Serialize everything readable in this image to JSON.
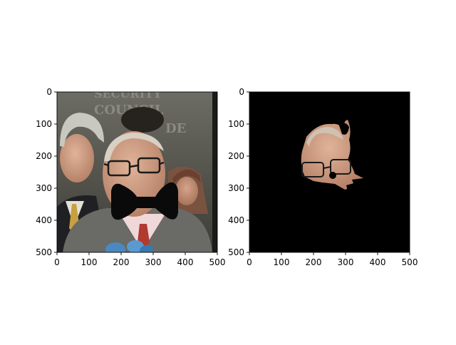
{
  "figure": {
    "background": "#ffffff"
  },
  "chart_data": [
    {
      "type": "image",
      "content": "photo-with-occlusion",
      "xlim": [
        0,
        500
      ],
      "ylim": [
        500,
        0
      ],
      "x_ticks": [
        0,
        100,
        200,
        300,
        400,
        500
      ],
      "y_ticks": [
        0,
        100,
        200,
        300,
        400,
        500
      ],
      "x_tick_labels": [
        "0",
        "100",
        "200",
        "300",
        "400",
        "500"
      ],
      "y_tick_labels": [
        "0",
        "100",
        "200",
        "300",
        "400",
        "500"
      ],
      "background_text": [
        "SECURITY",
        "COUNCIL",
        "DE"
      ],
      "occluder_color": "#0a0a0a"
    },
    {
      "type": "image",
      "content": "masked-face-segment",
      "xlim": [
        0,
        500
      ],
      "ylim": [
        500,
        0
      ],
      "x_ticks": [
        0,
        100,
        200,
        300,
        400,
        500
      ],
      "y_ticks": [
        0,
        100,
        200,
        300,
        400,
        500
      ],
      "x_tick_labels": [
        "0",
        "100",
        "200",
        "300",
        "400",
        "500"
      ],
      "y_tick_labels": [
        "0",
        "100",
        "200",
        "300",
        "400",
        "500"
      ],
      "background_color": "#000000"
    }
  ]
}
